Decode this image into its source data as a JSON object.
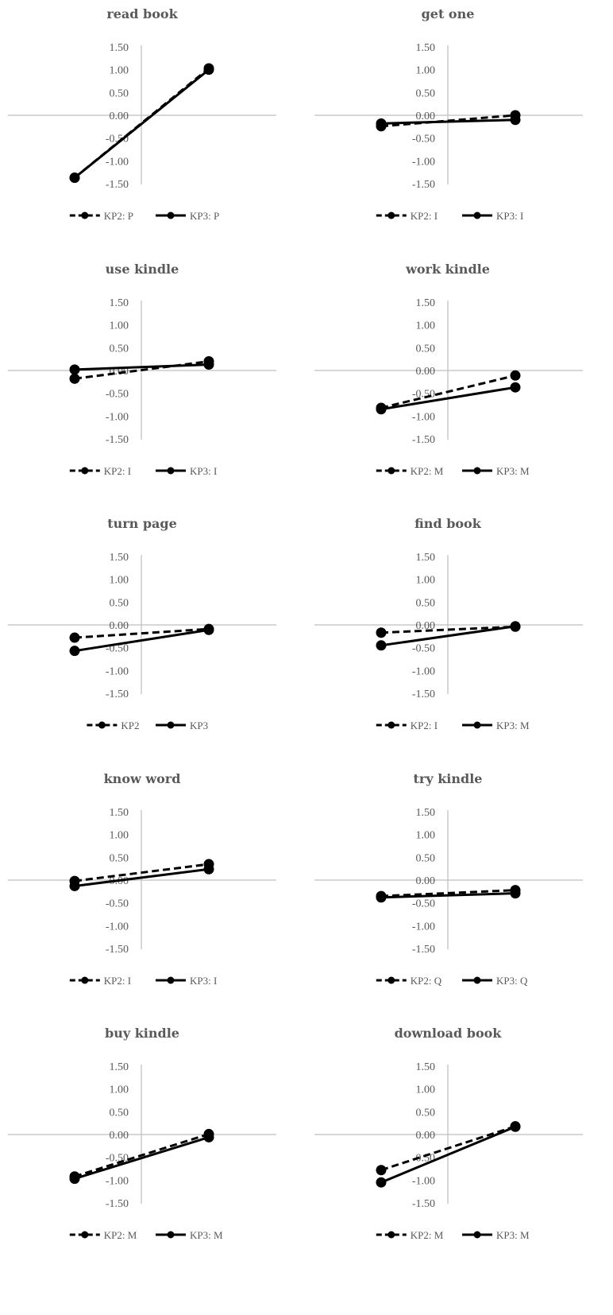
{
  "chart_data": [
    {
      "type": "line",
      "title": "read book",
      "categories": [
        "",
        ""
      ],
      "ylim": [
        -1.5,
        1.5
      ],
      "yticks": [
        "1.50",
        "1.00",
        "0.50",
        "0.00",
        "-0.50",
        "-1.00",
        "-1.50"
      ],
      "grid": false,
      "legend_position": "bottom",
      "series": [
        {
          "name": "KP2: P",
          "style": "dashed",
          "values": [
            -1.37,
            1.03
          ]
        },
        {
          "name": "KP3: P",
          "style": "solid",
          "values": [
            -1.37,
            1.0
          ]
        }
      ]
    },
    {
      "type": "line",
      "title": "get one",
      "categories": [
        "",
        ""
      ],
      "ylim": [
        -1.5,
        1.5
      ],
      "yticks": [
        "1.50",
        "1.00",
        "0.50",
        "0.00",
        "-0.50",
        "-1.00",
        "-1.50"
      ],
      "grid": false,
      "legend_position": "bottom",
      "series": [
        {
          "name": "KP2: I",
          "style": "dashed",
          "values": [
            -0.24,
            0.0
          ]
        },
        {
          "name": "KP3: I",
          "style": "solid",
          "values": [
            -0.18,
            -0.1
          ]
        }
      ]
    },
    {
      "type": "line",
      "title": "use kindle",
      "categories": [
        "",
        ""
      ],
      "ylim": [
        -1.5,
        1.5
      ],
      "yticks": [
        "1.50",
        "1.00",
        "0.50",
        "0.00",
        "-0.50",
        "-1.00",
        "-1.50"
      ],
      "grid": false,
      "legend_position": "bottom",
      "series": [
        {
          "name": "KP2: I",
          "style": "dashed",
          "values": [
            -0.18,
            0.2
          ]
        },
        {
          "name": "KP3: I",
          "style": "solid",
          "values": [
            0.02,
            0.13
          ]
        }
      ]
    },
    {
      "type": "line",
      "title": "work kindle",
      "categories": [
        "",
        ""
      ],
      "ylim": [
        -1.5,
        1.5
      ],
      "yticks": [
        "1.50",
        "1.00",
        "0.50",
        "0.00",
        "-0.50",
        "-1.00",
        "-1.50"
      ],
      "grid": false,
      "legend_position": "bottom",
      "series": [
        {
          "name": "KP2: M",
          "style": "dashed",
          "values": [
            -0.82,
            -0.11
          ]
        },
        {
          "name": "KP3: M",
          "style": "solid",
          "values": [
            -0.85,
            -0.37
          ]
        }
      ]
    },
    {
      "type": "line",
      "title": "turn page",
      "categories": [
        "",
        ""
      ],
      "ylim": [
        -1.5,
        1.5
      ],
      "yticks": [
        "1.50",
        "1.00",
        "0.50",
        "0.00",
        "-0.50",
        "-1.00",
        "-1.50"
      ],
      "grid": false,
      "legend_position": "bottom",
      "series": [
        {
          "name": "KP2",
          "style": "dashed",
          "values": [
            -0.28,
            -0.09
          ]
        },
        {
          "name": "KP3",
          "style": "solid",
          "values": [
            -0.57,
            -0.11
          ]
        }
      ]
    },
    {
      "type": "line",
      "title": "find book",
      "categories": [
        "",
        ""
      ],
      "ylim": [
        -1.5,
        1.5
      ],
      "yticks": [
        "1.50",
        "1.00",
        "0.50",
        "0.00",
        "-0.50",
        "-1.00",
        "-1.50"
      ],
      "grid": false,
      "legend_position": "bottom",
      "series": [
        {
          "name": "KP2: I",
          "style": "dashed",
          "values": [
            -0.17,
            -0.04
          ]
        },
        {
          "name": "KP3: M",
          "style": "solid",
          "values": [
            -0.45,
            -0.03
          ]
        }
      ]
    },
    {
      "type": "line",
      "title": "know word",
      "categories": [
        "",
        ""
      ],
      "ylim": [
        -1.5,
        1.5
      ],
      "yticks": [
        "1.50",
        "1.00",
        "0.50",
        "0.00",
        "-0.50",
        "-1.00",
        "-1.50"
      ],
      "grid": false,
      "legend_position": "bottom",
      "series": [
        {
          "name": "KP2: I",
          "style": "dashed",
          "values": [
            -0.02,
            0.35
          ]
        },
        {
          "name": "KP3: I",
          "style": "solid",
          "values": [
            -0.13,
            0.24
          ]
        }
      ]
    },
    {
      "type": "line",
      "title": "try kindle",
      "categories": [
        "",
        ""
      ],
      "ylim": [
        -1.5,
        1.5
      ],
      "yticks": [
        "1.50",
        "1.00",
        "0.50",
        "0.00",
        "-0.50",
        "-1.00",
        "-1.50"
      ],
      "grid": false,
      "legend_position": "bottom",
      "series": [
        {
          "name": "KP2: Q",
          "style": "dashed",
          "values": [
            -0.35,
            -0.22
          ]
        },
        {
          "name": "KP3: Q",
          "style": "solid",
          "values": [
            -0.38,
            -0.29
          ]
        }
      ]
    },
    {
      "type": "line",
      "title": "buy kindle",
      "categories": [
        "",
        ""
      ],
      "ylim": [
        -1.5,
        1.5
      ],
      "yticks": [
        "1.50",
        "1.00",
        "0.50",
        "0.00",
        "-0.50",
        "-1.00",
        "-1.50"
      ],
      "grid": false,
      "legend_position": "bottom",
      "series": [
        {
          "name": "KP2: M",
          "style": "dashed",
          "values": [
            -0.92,
            0.01
          ]
        },
        {
          "name": "KP3: M",
          "style": "solid",
          "values": [
            -0.97,
            -0.06
          ]
        }
      ]
    },
    {
      "type": "line",
      "title": "download book",
      "categories": [
        "",
        ""
      ],
      "ylim": [
        -1.5,
        1.5
      ],
      "yticks": [
        "1.50",
        "1.00",
        "0.50",
        "0.00",
        "-0.50",
        "-1.00",
        "-1.50"
      ],
      "grid": false,
      "legend_position": "bottom",
      "series": [
        {
          "name": "KP2: M",
          "style": "dashed",
          "values": [
            -0.78,
            0.18
          ]
        },
        {
          "name": "KP3: M",
          "style": "solid",
          "values": [
            -1.05,
            0.17
          ]
        }
      ]
    }
  ]
}
